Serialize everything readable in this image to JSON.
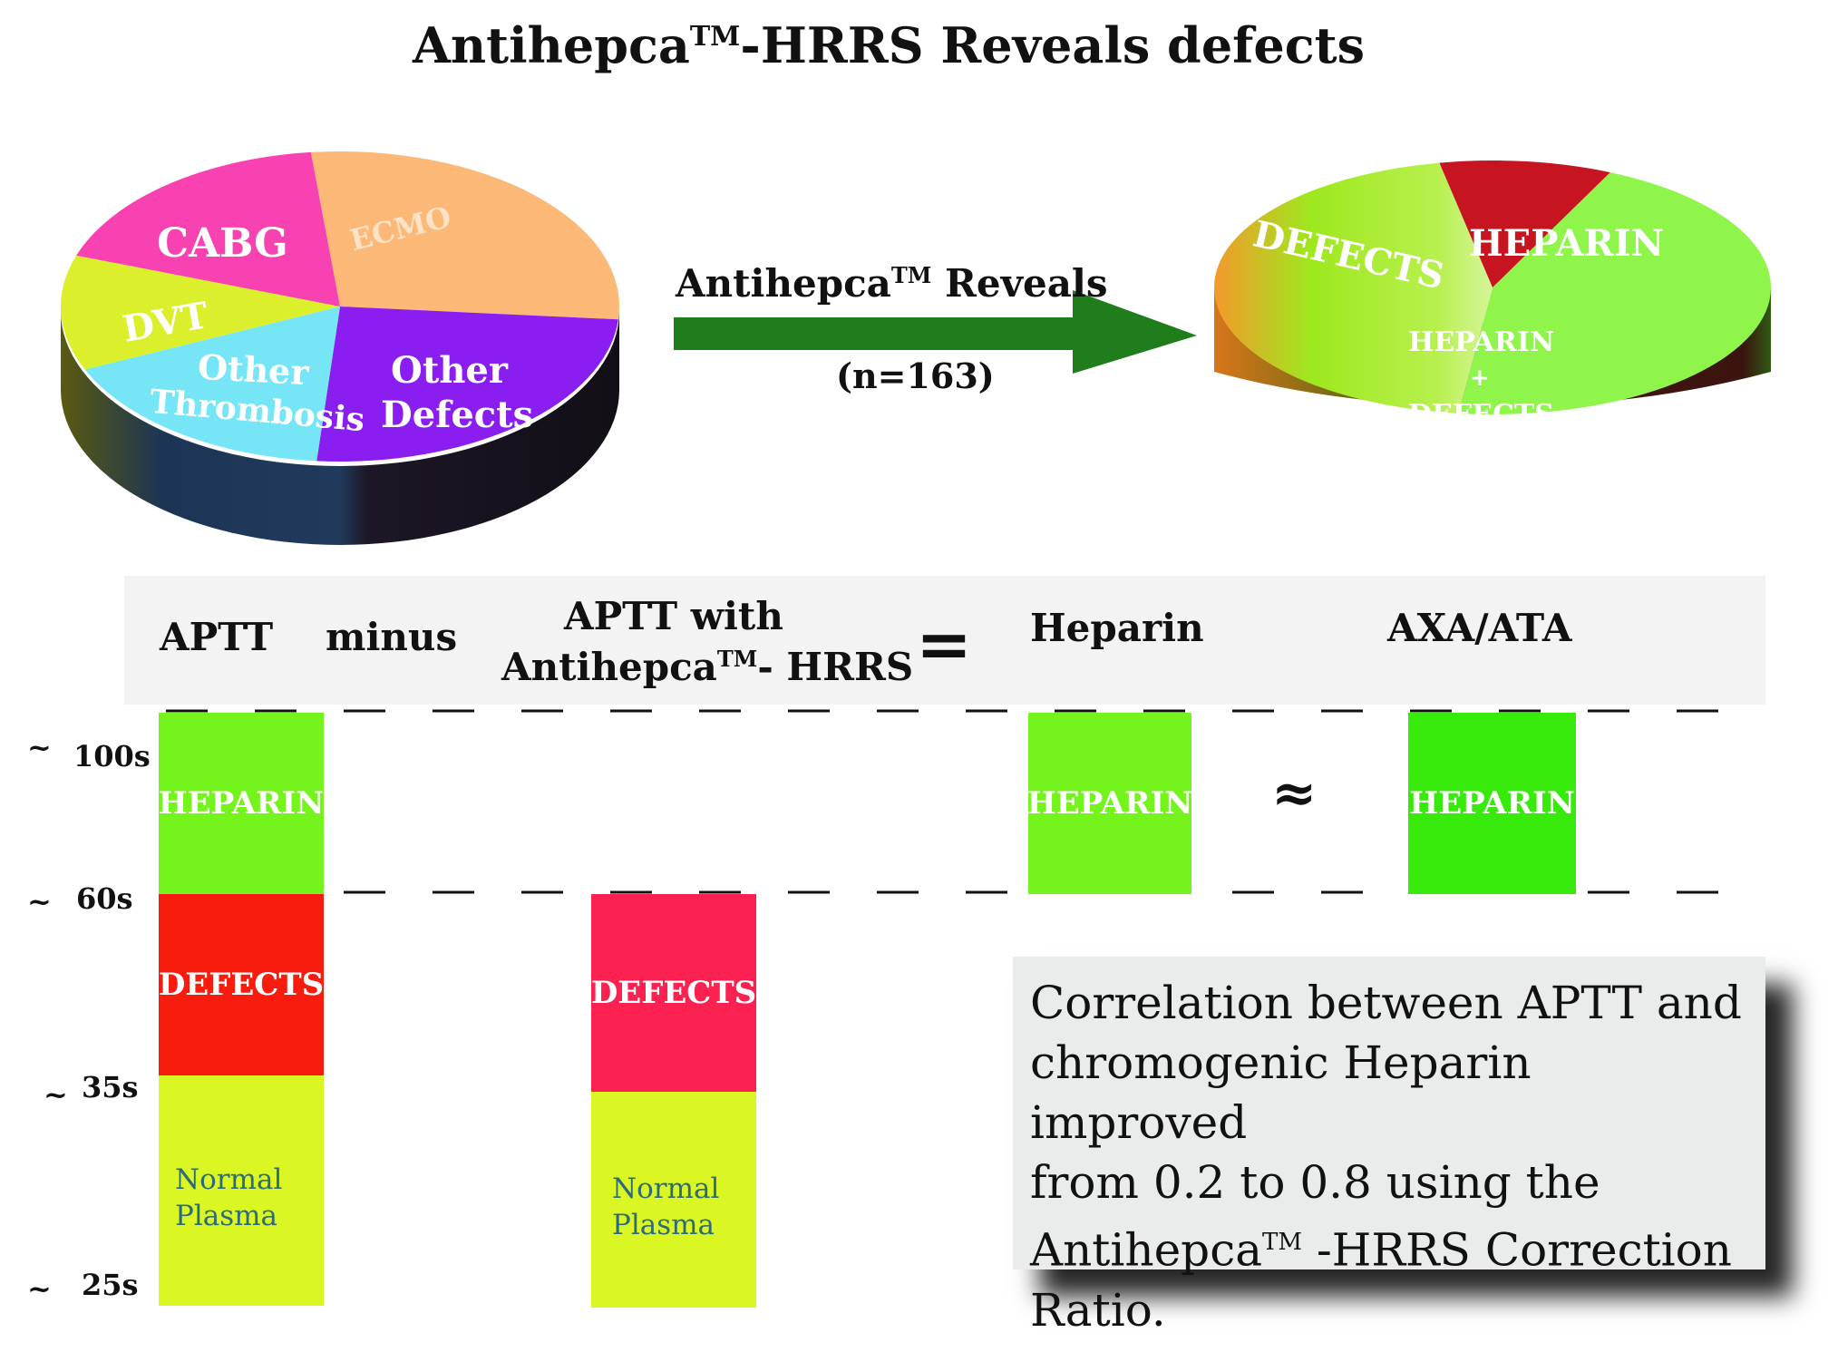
{
  "title": {
    "text": "Antihepca",
    "tm": "TM",
    "rest": "-HRRS Reveals defects"
  },
  "left_pie": {
    "slices": [
      {
        "label": "ECMO",
        "value": 28,
        "color": "#fbb877"
      },
      {
        "label": "Other Defects",
        "value": 25,
        "color": "#8a1df0"
      },
      {
        "label": "Other Thrombosis",
        "value": 17,
        "color": "#76e6f6"
      },
      {
        "label": "DVT",
        "value": 12,
        "color": "#dbef2c"
      },
      {
        "label": "CABG",
        "value": 18,
        "color": "#f842b1"
      }
    ],
    "labels": {
      "cabg": "CABG",
      "ecmo": "ECMO",
      "dvt": "DVT",
      "other_thrombosis_1": "Other",
      "other_thrombosis_2": "Thrombosis",
      "other_defects_1": "Other",
      "other_defects_2": "Defects"
    }
  },
  "arrow": {
    "label": "Antihepca",
    "tm": "TM",
    "label_rest": " Reveals",
    "n": "(n=163)",
    "color": "#1f7d1b"
  },
  "right_pie": {
    "slices": [
      {
        "label": "HEPARIN",
        "value": 45,
        "color": "#8ff54a"
      },
      {
        "label": "HEPARIN + DEFECTS",
        "value": 45,
        "color": "#c7ec3c"
      },
      {
        "label": "DEFECTS",
        "value": 10,
        "color": "#c61420"
      }
    ],
    "labels": {
      "defects": "DEFECTS",
      "heparin": "HEPARIN",
      "hd_1": "HEPARIN",
      "hd_2": "+",
      "hd_3": "DEFECTS"
    }
  },
  "header": {
    "aptt": "APTT",
    "minus": "minus",
    "aptt_with_1": "APTT with",
    "aptt_with_2a": "Antihepca",
    "aptt_with_tm": "TM",
    "aptt_with_2b": "- HRRS",
    "equals": "=",
    "heparin": "Heparin",
    "axa": "AXA/ATA"
  },
  "axis": {
    "tilde": "~",
    "t100": "100s",
    "t60": "60s",
    "t35": "35s",
    "t25": "25s"
  },
  "blocks": {
    "heparin": "HEPARIN",
    "defects": "DEFECTS",
    "normal_1": "Normal",
    "normal_2": "Plasma",
    "approx": "≈",
    "colors": {
      "heparin": "#74f41c",
      "heparin_axa": "#37ea0b",
      "defects_aptt": "#f71c0e",
      "defects_hrrs": "#fb2150",
      "normal": "#daf723"
    }
  },
  "note": {
    "line1": "Correlation between APTT and",
    "line2": "chromogenic Heparin improved",
    "line3": "from 0.2 to 0.8 using the",
    "line4a": "Antihepca",
    "line4tm": "TM",
    "line4b": " -HRRS Correction",
    "line5": "Ratio."
  }
}
